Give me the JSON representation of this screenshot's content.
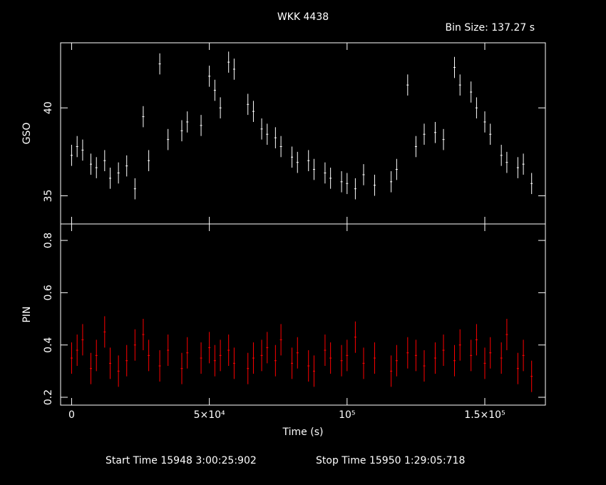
{
  "chart_data": [
    {
      "type": "scatter",
      "title": "WKK 4438",
      "annotation": "Bin Size: 137.27 s",
      "ylabel": "GSO",
      "color": "#ffffff",
      "x": [
        0,
        2000,
        4000,
        7000,
        9000,
        12000,
        14000,
        17000,
        20000,
        23000,
        26000,
        28000,
        32000,
        35000,
        40000,
        42000,
        47000,
        50000,
        52000,
        54000,
        57000,
        59000,
        64000,
        66000,
        69000,
        71000,
        74000,
        76000,
        80000,
        82000,
        86000,
        88000,
        92000,
        94000,
        98000,
        100000,
        103000,
        106000,
        110000,
        116000,
        118000,
        122000,
        125000,
        128000,
        132000,
        135000,
        139000,
        141000,
        145000,
        147000,
        150000,
        152000,
        156000,
        158000,
        162000,
        164000,
        167000
      ],
      "values": [
        37.3,
        37.8,
        37.6,
        36.8,
        36.6,
        37.0,
        36.0,
        36.3,
        36.7,
        35.4,
        39.5,
        37.0,
        42.5,
        38.2,
        38.7,
        39.2,
        39.0,
        41.8,
        41.0,
        40.0,
        42.6,
        42.2,
        40.2,
        39.8,
        38.8,
        38.5,
        38.3,
        37.8,
        37.2,
        36.9,
        37.0,
        36.5,
        36.3,
        36.0,
        35.8,
        35.7,
        35.4,
        36.2,
        35.6,
        35.8,
        36.5,
        41.3,
        37.8,
        38.5,
        38.6,
        38.2,
        42.3,
        41.3,
        40.9,
        40.0,
        39.2,
        38.5,
        37.3,
        36.9,
        36.6,
        36.8,
        35.7
      ],
      "errors": [
        0.6,
        0.6,
        0.6,
        0.6,
        0.6,
        0.6,
        0.6,
        0.6,
        0.6,
        0.6,
        0.6,
        0.6,
        0.6,
        0.6,
        0.6,
        0.6,
        0.6,
        0.6,
        0.6,
        0.6,
        0.6,
        0.6,
        0.6,
        0.6,
        0.6,
        0.6,
        0.6,
        0.6,
        0.6,
        0.6,
        0.6,
        0.6,
        0.6,
        0.6,
        0.6,
        0.6,
        0.6,
        0.6,
        0.6,
        0.6,
        0.6,
        0.6,
        0.6,
        0.6,
        0.6,
        0.6,
        0.6,
        0.6,
        0.6,
        0.6,
        0.6,
        0.6,
        0.6,
        0.6,
        0.6,
        0.6,
        0.6
      ],
      "xlim": [
        -4000,
        172000
      ],
      "ylim": [
        33.4,
        43.7
      ],
      "yticks": [
        35,
        40
      ]
    },
    {
      "type": "scatter",
      "ylabel": "PIN",
      "xlabel": "Time (s)",
      "start_time": "Start Time 15948  3:00:25:902",
      "stop_time": "Stop Time 15950  1:29:05:718",
      "color": "#ff0000",
      "x": [
        0,
        2000,
        4000,
        7000,
        9000,
        12000,
        14000,
        17000,
        20000,
        23000,
        26000,
        28000,
        32000,
        35000,
        40000,
        42000,
        47000,
        50000,
        52000,
        54000,
        57000,
        59000,
        64000,
        66000,
        69000,
        71000,
        74000,
        76000,
        80000,
        82000,
        86000,
        88000,
        92000,
        94000,
        98000,
        100000,
        103000,
        106000,
        110000,
        116000,
        118000,
        122000,
        125000,
        128000,
        132000,
        135000,
        139000,
        141000,
        145000,
        147000,
        150000,
        152000,
        156000,
        158000,
        162000,
        164000,
        167000
      ],
      "values": [
        0.35,
        0.38,
        0.42,
        0.31,
        0.36,
        0.45,
        0.33,
        0.3,
        0.34,
        0.4,
        0.44,
        0.36,
        0.32,
        0.38,
        0.31,
        0.37,
        0.35,
        0.39,
        0.34,
        0.36,
        0.38,
        0.33,
        0.31,
        0.35,
        0.36,
        0.39,
        0.34,
        0.42,
        0.33,
        0.37,
        0.32,
        0.3,
        0.38,
        0.35,
        0.34,
        0.36,
        0.43,
        0.33,
        0.35,
        0.3,
        0.34,
        0.37,
        0.36,
        0.32,
        0.35,
        0.38,
        0.34,
        0.4,
        0.36,
        0.42,
        0.33,
        0.37,
        0.35,
        0.44,
        0.31,
        0.36,
        0.28
      ],
      "errors": [
        0.06,
        0.06,
        0.06,
        0.06,
        0.06,
        0.06,
        0.06,
        0.06,
        0.06,
        0.06,
        0.06,
        0.06,
        0.06,
        0.06,
        0.06,
        0.06,
        0.06,
        0.06,
        0.06,
        0.06,
        0.06,
        0.06,
        0.06,
        0.06,
        0.06,
        0.06,
        0.06,
        0.06,
        0.06,
        0.06,
        0.06,
        0.06,
        0.06,
        0.06,
        0.06,
        0.06,
        0.06,
        0.06,
        0.06,
        0.06,
        0.06,
        0.06,
        0.06,
        0.06,
        0.06,
        0.06,
        0.06,
        0.06,
        0.06,
        0.06,
        0.06,
        0.06,
        0.06,
        0.06,
        0.06,
        0.06,
        0.06
      ],
      "xlim": [
        -4000,
        172000
      ],
      "ylim": [
        0.17,
        0.863
      ],
      "yticks": [
        0.2,
        0.4,
        0.6,
        0.8
      ],
      "xticks": [
        0,
        {
          "value": 50000,
          "label": "5×10⁴"
        },
        {
          "value": 100000,
          "label": "10⁵"
        },
        {
          "value": 150000,
          "label": "1.5×10⁵"
        }
      ]
    }
  ]
}
